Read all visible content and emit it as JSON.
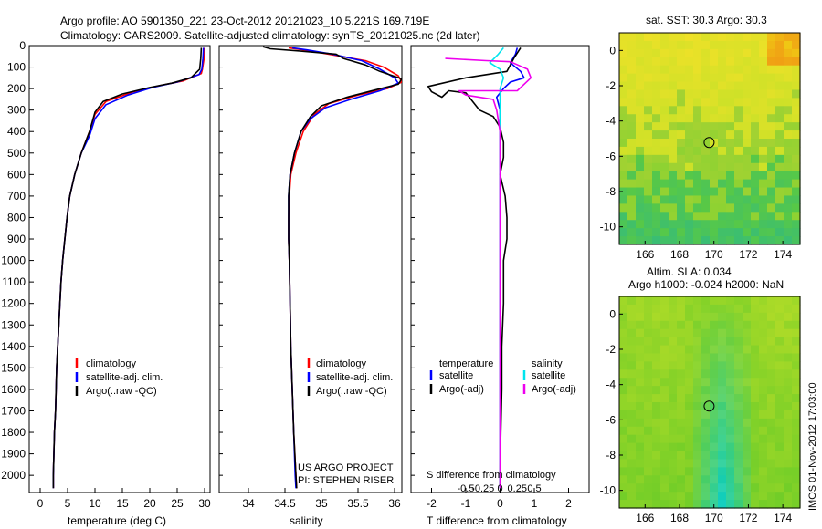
{
  "header": {
    "line1": "Argo profile: AO 5901350_221 23-Oct-2012 20121023_10 5.221S 169.719E",
    "line2": "Climatology: CARS2009. Satellite-adjusted climatology: synTS_20121025.nc (2d later)"
  },
  "credits": {
    "line1": "US ARGO PROJECT",
    "line2": "PI: STEPHEN RISER"
  },
  "imos_stamp": "IMOS 01-Nov-2012 17:03:00",
  "colors": {
    "climatology": "#ff0000",
    "satellite": "#0000ff",
    "argo": "#000000",
    "sat_salinity": "#00e5ee",
    "argo_salinity": "#ee00ee"
  },
  "chart_data": [
    {
      "type": "line",
      "xlabel": "temperature (deg C)",
      "ylabel": "",
      "xlim": [
        -2,
        31
      ],
      "ylim": [
        2080,
        0
      ],
      "x_ticks": [
        0,
        5,
        10,
        15,
        20,
        25,
        30
      ],
      "y_ticks": [
        0,
        100,
        200,
        300,
        400,
        500,
        600,
        700,
        800,
        900,
        1000,
        1100,
        1200,
        1300,
        1400,
        1500,
        1600,
        1700,
        1800,
        1900,
        2000
      ],
      "legend": [
        "climatology",
        "satellite-adj. clim.",
        "Argo(..raw -QC)"
      ],
      "series": [
        {
          "name": "climatology",
          "points": [
            [
              30,
              10
            ],
            [
              29.9,
              60
            ],
            [
              29.6,
              110
            ],
            [
              29.4,
              130
            ],
            [
              26,
              165
            ],
            [
              22,
              185
            ],
            [
              17,
              215
            ],
            [
              12,
              260
            ],
            [
              10,
              320
            ],
            [
              9,
              400
            ],
            [
              7.5,
              500
            ],
            [
              6.3,
              600
            ],
            [
              5.4,
              700
            ],
            [
              4.9,
              800
            ],
            [
              4.5,
              900
            ],
            [
              4.1,
              1000
            ],
            [
              3.8,
              1100
            ],
            [
              3.6,
              1200
            ],
            [
              3.4,
              1300
            ],
            [
              3.2,
              1400
            ],
            [
              3.0,
              1500
            ],
            [
              2.9,
              1600
            ],
            [
              2.8,
              1700
            ],
            [
              2.6,
              1800
            ],
            [
              2.5,
              1900
            ],
            [
              2.4,
              2000
            ],
            [
              2.4,
              2060
            ]
          ]
        },
        {
          "name": "satellite-adj. clim.",
          "points": [
            [
              29.8,
              10
            ],
            [
              29.7,
              60
            ],
            [
              29.5,
              110
            ],
            [
              29.0,
              135
            ],
            [
              25,
              170
            ],
            [
              20.5,
              195
            ],
            [
              16,
              230
            ],
            [
              12,
              275
            ],
            [
              10,
              340
            ],
            [
              9,
              420
            ],
            [
              7.5,
              500
            ],
            [
              6.3,
              600
            ],
            [
              5.4,
              700
            ],
            [
              4.9,
              800
            ],
            [
              4.5,
              900
            ],
            [
              4.1,
              1000
            ],
            [
              3.8,
              1100
            ],
            [
              3.6,
              1200
            ],
            [
              3.4,
              1300
            ],
            [
              3.2,
              1400
            ],
            [
              3.0,
              1500
            ],
            [
              2.9,
              1600
            ],
            [
              2.8,
              1700
            ],
            [
              2.6,
              1800
            ],
            [
              2.5,
              1900
            ],
            [
              2.4,
              2000
            ],
            [
              2.4,
              2060
            ]
          ]
        },
        {
          "name": "Argo(..raw -QC)",
          "points": [
            [
              29.4,
              10
            ],
            [
              29.3,
              60
            ],
            [
              29.1,
              110
            ],
            [
              27.5,
              150
            ],
            [
              24,
              175
            ],
            [
              20,
              195
            ],
            [
              15,
              225
            ],
            [
              11.5,
              260
            ],
            [
              10,
              310
            ],
            [
              9,
              400
            ],
            [
              7.5,
              500
            ],
            [
              6.3,
              600
            ],
            [
              5.4,
              700
            ],
            [
              4.9,
              800
            ],
            [
              4.5,
              900
            ],
            [
              4.1,
              1000
            ],
            [
              3.8,
              1100
            ],
            [
              3.6,
              1200
            ],
            [
              3.4,
              1300
            ],
            [
              3.2,
              1400
            ],
            [
              3.0,
              1500
            ],
            [
              2.9,
              1600
            ],
            [
              2.8,
              1700
            ],
            [
              2.6,
              1800
            ],
            [
              2.5,
              1900
            ],
            [
              2.4,
              2000
            ],
            [
              2.4,
              2060
            ]
          ]
        }
      ]
    },
    {
      "type": "line",
      "xlabel": "salinity",
      "xlim": [
        33.6,
        36.1
      ],
      "ylim": [
        2080,
        0
      ],
      "x_ticks": [
        34,
        34.5,
        35,
        35.5,
        36
      ],
      "legend": [
        "climatology",
        "satellite-adj. clim.",
        "Argo(..raw -QC)"
      ],
      "series": [
        {
          "name": "climatology",
          "points": [
            [
              34.55,
              10
            ],
            [
              34.75,
              20
            ],
            [
              35.1,
              40
            ],
            [
              35.6,
              70
            ],
            [
              35.85,
              100
            ],
            [
              36.05,
              140
            ],
            [
              36.1,
              170
            ],
            [
              35.9,
              200
            ],
            [
              35.5,
              230
            ],
            [
              35.1,
              270
            ],
            [
              34.9,
              320
            ],
            [
              34.75,
              400
            ],
            [
              34.65,
              500
            ],
            [
              34.58,
              600
            ],
            [
              34.56,
              700
            ],
            [
              34.55,
              800
            ],
            [
              34.55,
              900
            ],
            [
              34.56,
              1000
            ],
            [
              34.57,
              1200
            ],
            [
              34.58,
              1400
            ],
            [
              34.6,
              1600
            ],
            [
              34.62,
              1800
            ],
            [
              34.65,
              2000
            ],
            [
              34.66,
              2060
            ]
          ]
        },
        {
          "name": "satellite-adj. clim.",
          "points": [
            [
              34.6,
              10
            ],
            [
              34.8,
              20
            ],
            [
              35.15,
              40
            ],
            [
              35.55,
              70
            ],
            [
              35.8,
              110
            ],
            [
              36.0,
              150
            ],
            [
              36.05,
              175
            ],
            [
              35.8,
              210
            ],
            [
              35.4,
              250
            ],
            [
              35.05,
              290
            ],
            [
              34.85,
              340
            ],
            [
              34.72,
              400
            ],
            [
              34.63,
              500
            ],
            [
              34.57,
              600
            ],
            [
              34.55,
              700
            ],
            [
              34.55,
              800
            ],
            [
              34.55,
              900
            ],
            [
              34.56,
              1000
            ],
            [
              34.57,
              1200
            ],
            [
              34.58,
              1400
            ],
            [
              34.6,
              1600
            ],
            [
              34.62,
              1800
            ],
            [
              34.64,
              2000
            ],
            [
              34.65,
              2060
            ]
          ]
        },
        {
          "name": "Argo(..raw -QC)",
          "points": [
            [
              34.2,
              5
            ],
            [
              34.3,
              15
            ],
            [
              34.7,
              25
            ],
            [
              35.2,
              40
            ],
            [
              35.3,
              60
            ],
            [
              35.6,
              90
            ],
            [
              35.8,
              120
            ],
            [
              36.1,
              155
            ],
            [
              36.05,
              180
            ],
            [
              35.75,
              205
            ],
            [
              35.35,
              240
            ],
            [
              35.0,
              280
            ],
            [
              34.85,
              330
            ],
            [
              34.72,
              400
            ],
            [
              34.63,
              500
            ],
            [
              34.57,
              600
            ],
            [
              34.55,
              700
            ],
            [
              34.55,
              800
            ],
            [
              34.55,
              900
            ],
            [
              34.56,
              1000
            ],
            [
              34.57,
              1200
            ],
            [
              34.58,
              1400
            ],
            [
              34.6,
              1600
            ],
            [
              34.62,
              1800
            ],
            [
              34.65,
              2000
            ],
            [
              34.66,
              2060
            ]
          ]
        }
      ]
    },
    {
      "type": "line",
      "xlabel": "T difference from climatology",
      "top_axis_label": "S difference from climatology",
      "xlim": [
        -2.6,
        2.6
      ],
      "ylim": [
        2080,
        0
      ],
      "x_ticks": [
        -2,
        -1,
        0,
        1,
        2
      ],
      "x_tick_labels": [
        "-2",
        "-1",
        "0",
        "1",
        "2"
      ],
      "s_ticks": [
        -0.5,
        -0.25,
        0,
        0.25,
        0.5
      ],
      "s_tick_labels": [
        "-0.5",
        "-0.25",
        "0",
        "0.25",
        "0.5"
      ],
      "legend_temperature_title": "temperature",
      "legend_salinity_title": "salinity",
      "legend": [
        "satellite",
        "Argo(-adj)",
        "satellite",
        "Argo(-adj)"
      ],
      "series": [
        {
          "name": "temperature satellite",
          "points": [
            [
              0.5,
              10
            ],
            [
              0.45,
              40
            ],
            [
              0.3,
              80
            ],
            [
              0.6,
              120
            ],
            [
              0.7,
              150
            ],
            [
              0.3,
              170
            ],
            [
              0.1,
              200
            ],
            [
              -0.1,
              240
            ],
            [
              0,
              300
            ],
            [
              0,
              400
            ],
            [
              0,
              500
            ],
            [
              0,
              600
            ],
            [
              0,
              800
            ],
            [
              0,
              1000
            ],
            [
              0,
              1200
            ],
            [
              0,
              1400
            ],
            [
              0,
              1600
            ],
            [
              0,
              1800
            ],
            [
              0,
              2000
            ],
            [
              0,
              2060
            ]
          ]
        },
        {
          "name": "temperature Argo(-adj)",
          "points": [
            [
              0.6,
              10
            ],
            [
              0.4,
              60
            ],
            [
              0.2,
              120
            ],
            [
              -1.0,
              150
            ],
            [
              -2.1,
              190
            ],
            [
              -2.0,
              215
            ],
            [
              -1.7,
              240
            ],
            [
              -1.5,
              210
            ],
            [
              -1.0,
              220
            ],
            [
              -0.8,
              260
            ],
            [
              -0.6,
              300
            ],
            [
              -0.2,
              330
            ],
            [
              0.0,
              380
            ],
            [
              0.1,
              450
            ],
            [
              0.1,
              520
            ],
            [
              0.0,
              600
            ],
            [
              0.15,
              700
            ],
            [
              0.2,
              800
            ],
            [
              0.2,
              900
            ],
            [
              0.1,
              1000
            ],
            [
              0.1,
              1200
            ],
            [
              0.05,
              1400
            ],
            [
              0.05,
              1600
            ],
            [
              0.02,
              1800
            ],
            [
              0,
              2000
            ],
            [
              0,
              2060
            ]
          ]
        },
        {
          "name": "salinity satellite",
          "points": [
            [
              0.1,
              10
            ],
            [
              -0.05,
              40
            ],
            [
              -0.3,
              80
            ],
            [
              0.0,
              110
            ],
            [
              0.1,
              150
            ],
            [
              0.0,
              200
            ],
            [
              0.0,
              300
            ],
            [
              0.0,
              500
            ],
            [
              0.0,
              800
            ],
            [
              0.0,
              1100
            ],
            [
              0.0,
              1400
            ],
            [
              0.0,
              1700
            ],
            [
              0.0,
              2000
            ],
            [
              0.0,
              2060
            ]
          ]
        },
        {
          "name": "salinity Argo(-adj)",
          "points": [
            [
              -1.6,
              60
            ],
            [
              -0.4,
              70
            ],
            [
              0.3,
              75
            ],
            [
              0.8,
              110
            ],
            [
              0.9,
              150
            ],
            [
              0.7,
              180
            ],
            [
              0.5,
              210
            ],
            [
              -0.4,
              210
            ],
            [
              -1.2,
              210
            ],
            [
              -1.0,
              230
            ],
            [
              -0.2,
              250
            ],
            [
              -0.1,
              300
            ],
            [
              0.0,
              400
            ],
            [
              0.0,
              600
            ],
            [
              0.0,
              900
            ],
            [
              0.0,
              1200
            ],
            [
              0.0,
              1500
            ],
            [
              0.0,
              1800
            ],
            [
              0.0,
              2060
            ]
          ]
        }
      ]
    },
    {
      "type": "heatmap",
      "title": "sat. SST: 30.3 Argo: 30.3",
      "xlim": [
        164.5,
        175
      ],
      "ylim": [
        -11,
        1
      ],
      "x_ticks": [
        166,
        168,
        170,
        172,
        174
      ],
      "y_ticks": [
        0,
        -2,
        -4,
        -6,
        -8,
        -10
      ],
      "marker": {
        "lon": 169.719,
        "lat": -5.221
      }
    },
    {
      "type": "heatmap",
      "title": "Altim. SLA: 0.034",
      "subtitle": "Argo h1000: -0.024 h2000: NaN",
      "xlim": [
        164.5,
        175
      ],
      "ylim": [
        -11,
        1
      ],
      "x_ticks": [
        166,
        168,
        170,
        172,
        174
      ],
      "y_ticks": [
        0,
        -2,
        -4,
        -6,
        -8,
        -10
      ],
      "marker": {
        "lon": 169.719,
        "lat": -5.221
      }
    }
  ]
}
